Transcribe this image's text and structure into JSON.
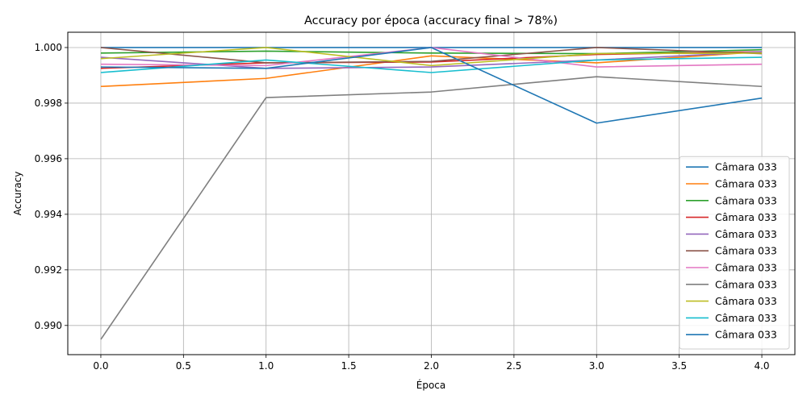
{
  "chart_data": {
    "type": "line",
    "title": "Accuracy por época (accuracy final > 78%)",
    "xlabel": "Época",
    "ylabel": "Accuracy",
    "x": [
      0,
      1,
      2,
      3,
      4
    ],
    "xlim": [
      -0.2,
      4.2
    ],
    "ylim": [
      0.98895,
      1.00055
    ],
    "xticks": [
      0.0,
      0.5,
      1.0,
      1.5,
      2.0,
      2.5,
      3.0,
      3.5,
      4.0
    ],
    "xtick_labels": [
      "0.0",
      "0.5",
      "1.0",
      "1.5",
      "2.0",
      "2.5",
      "3.0",
      "3.5",
      "4.0"
    ],
    "yticks": [
      0.99,
      0.992,
      0.994,
      0.996,
      0.998,
      1.0
    ],
    "ytick_labels": [
      "0.990",
      "0.992",
      "0.994",
      "0.996",
      "0.998",
      "1.000"
    ],
    "grid": true,
    "legend_position": "lower-right",
    "series": [
      {
        "name": "Câmara 033",
        "color": "#1f77b4",
        "values": [
          1.0,
          1.0,
          1.0,
          1.0,
          1.0
        ]
      },
      {
        "name": "Câmara 033",
        "color": "#ff7f0e",
        "values": [
          0.9986,
          0.99889,
          0.9997,
          0.99945,
          0.99985
        ]
      },
      {
        "name": "Câmara 033",
        "color": "#2ca02c",
        "values": [
          0.9998,
          0.99987,
          0.9998,
          0.99978,
          0.99992
        ]
      },
      {
        "name": "Câmara 033",
        "color": "#d62728",
        "values": [
          0.99925,
          0.99945,
          0.99948,
          0.99975,
          0.99985
        ]
      },
      {
        "name": "Câmara 033",
        "color": "#9467bd",
        "values": [
          0.99965,
          0.99925,
          0.9993,
          0.99955,
          0.99985
        ]
      },
      {
        "name": "Câmara 033",
        "color": "#8c564b",
        "values": [
          1.0,
          0.99945,
          0.9995,
          1.0,
          0.99978
        ]
      },
      {
        "name": "Câmara 033",
        "color": "#e377c2",
        "values": [
          0.9994,
          0.99935,
          1.0,
          0.9993,
          0.9994
        ]
      },
      {
        "name": "Câmara 033",
        "color": "#7f7f7f",
        "values": [
          0.9895,
          0.9982,
          0.9984,
          0.99895,
          0.9986
        ]
      },
      {
        "name": "Câmara 033",
        "color": "#bcbd22",
        "values": [
          0.9996,
          1.0,
          0.99935,
          0.99978,
          0.9998
        ]
      },
      {
        "name": "Câmara 033",
        "color": "#17becf",
        "values": [
          0.9991,
          0.99955,
          0.9991,
          0.99955,
          0.99965
        ]
      },
      {
        "name": "Câmara 033",
        "color": "#1f77b4",
        "values": [
          0.9993,
          0.99925,
          1.0,
          0.99728,
          0.99818
        ]
      }
    ]
  }
}
